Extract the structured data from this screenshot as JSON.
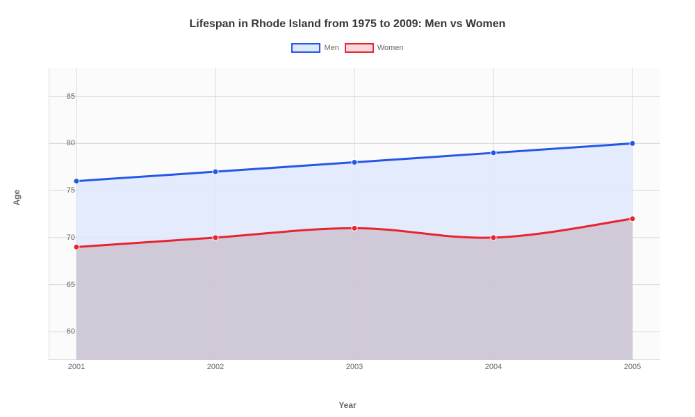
{
  "chart": {
    "type": "area",
    "title": "Lifespan in Rhode Island from 1975 to 2009: Men vs Women",
    "title_fontsize": 16,
    "title_color": "#383838",
    "background_color": "#ffffff",
    "plot_background": "#fbfbfb",
    "grid_color": "#d8d8d8",
    "x_axis": {
      "label": "Year",
      "categories": [
        "2001",
        "2002",
        "2003",
        "2004",
        "2005"
      ]
    },
    "y_axis": {
      "label": "Age",
      "min": 57,
      "max": 88,
      "ticks": [
        60,
        65,
        70,
        75,
        80,
        85
      ]
    },
    "series": [
      {
        "name": "Men",
        "stroke": "#2357e8",
        "fill": "#dfe8fb",
        "fill_opacity": 0.85,
        "line_width": 3,
        "marker_radius": 4,
        "values": [
          76,
          77,
          78,
          79,
          80
        ]
      },
      {
        "name": "Women",
        "stroke": "#e8232e",
        "fill": "#cabecc",
        "fill_opacity": 0.75,
        "line_width": 3,
        "marker_radius": 4,
        "values": [
          69,
          70,
          71,
          70,
          72
        ]
      }
    ],
    "legend": {
      "position": "top",
      "items": [
        {
          "label": "Men",
          "stroke": "#2357e8",
          "fill": "#dfe8fb"
        },
        {
          "label": "Women",
          "stroke": "#e8232e",
          "fill": "#f6dadc"
        }
      ]
    },
    "tick_label_color": "#666666",
    "tick_label_fontsize": 11,
    "axis_label_fontsize": 12
  }
}
